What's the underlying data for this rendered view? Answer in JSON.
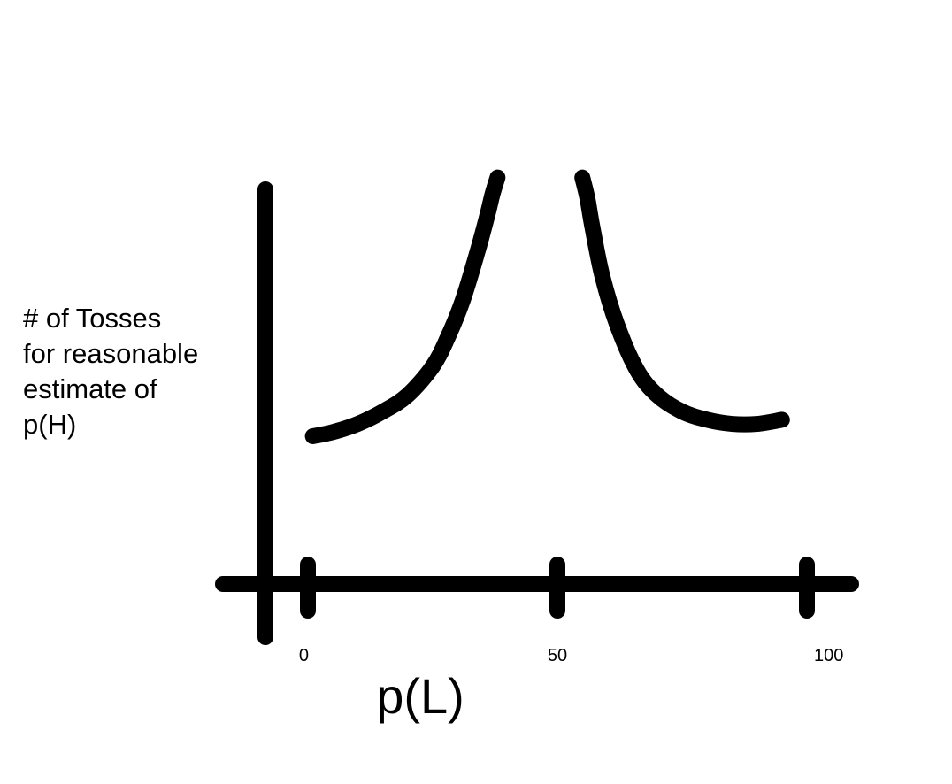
{
  "chart_data": {
    "type": "line",
    "title": "",
    "xlabel": "p(L)",
    "ylabel_lines": [
      "# of Tosses",
      "for reasonable",
      "estimate of",
      "p(H)"
    ],
    "x_ticks": [
      0,
      50,
      100
    ],
    "x_tick_labels": [
      "0",
      "50",
      "100"
    ],
    "xlim": [
      0,
      100
    ],
    "ylim": [
      0,
      10
    ],
    "y_ticks": [],
    "grid": false,
    "legend": "none",
    "series": [
      {
        "x": [
          1,
          5,
          10,
          15,
          20,
          25,
          28,
          31,
          34,
          36,
          37,
          38
        ],
        "y": [
          3.6,
          3.7,
          3.9,
          4.2,
          4.6,
          5.3,
          6.0,
          6.9,
          8.1,
          9.0,
          9.5,
          9.9
        ]
      },
      {
        "x": [
          55,
          56,
          57,
          59,
          62,
          66,
          70,
          75,
          80,
          85,
          90,
          95
        ],
        "y": [
          9.9,
          9.4,
          8.7,
          7.5,
          6.3,
          5.2,
          4.6,
          4.2,
          4.0,
          3.9,
          3.9,
          4.0
        ]
      }
    ],
    "line_color": "#000000"
  }
}
